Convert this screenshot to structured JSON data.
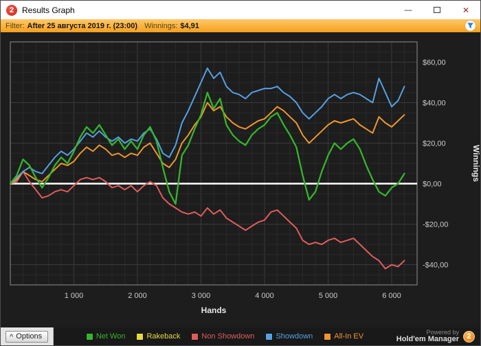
{
  "window": {
    "title": "Results Graph",
    "app_badge": "2"
  },
  "titlebar_icons": {
    "minimize": "—",
    "close": "✕"
  },
  "filter_bar": {
    "label": "Filter:",
    "value": "After 25 августа 2019 г. (23:00)",
    "winnings_label": "Winnings:",
    "winnings_value": "$4,91"
  },
  "chart_data": {
    "type": "line",
    "xlabel": "Hands",
    "ylabel": "Winnings",
    "xlim": [
      0,
      6400
    ],
    "ylim": [
      -50,
      70
    ],
    "x_step": 100,
    "x_minor_step": 200,
    "y_minor_step": 5,
    "grid": true,
    "grid_minor_color": "#292929",
    "grid_major_color": "#3a3a3a",
    "tick_color": "#cccccc",
    "axis_label_color": "#e8e8e8",
    "zero_line_color": "#ffffff",
    "plot_border_color": "#8f8f8f",
    "x_ticks": [
      {
        "value": 1000,
        "label": "1 000"
      },
      {
        "value": 2000,
        "label": "2 000"
      },
      {
        "value": 3000,
        "label": "3 000"
      },
      {
        "value": 4000,
        "label": "4 000"
      },
      {
        "value": 5000,
        "label": "5 000"
      },
      {
        "value": 6000,
        "label": "6 000"
      }
    ],
    "y_ticks": [
      {
        "value": 60,
        "label": "$60,00"
      },
      {
        "value": 40,
        "label": "$40,00"
      },
      {
        "value": 20,
        "label": "$20,00"
      },
      {
        "value": 0,
        "label": "$0,00"
      },
      {
        "value": -20,
        "label": "-$20,00"
      },
      {
        "value": -40,
        "label": "-$40,00"
      }
    ],
    "legend_position": "bottom",
    "series": [
      {
        "name": "Net Won",
        "color": "#35b52b",
        "z": 6,
        "width": 2.3,
        "values": [
          0,
          4,
          12,
          9,
          3,
          -2,
          3,
          9,
          13,
          10,
          16,
          23,
          28,
          25,
          29,
          24,
          19,
          22,
          17,
          21,
          17,
          24,
          28,
          21,
          8,
          -4,
          -10,
          14,
          19,
          27,
          34,
          45,
          37,
          42,
          29,
          24,
          21,
          19,
          24,
          27,
          29,
          33,
          35,
          29,
          24,
          18,
          4,
          -8,
          -4,
          6,
          14,
          20,
          17,
          20,
          22,
          17,
          9,
          2,
          -4,
          -6,
          -2,
          0,
          5
        ]
      },
      {
        "name": "Rakeback",
        "color": "#e6d93f",
        "z": 1,
        "width": 2,
        "values": [
          0,
          0,
          0,
          0,
          0,
          0,
          0,
          0,
          0,
          0,
          0,
          0,
          0,
          0,
          0,
          0,
          0,
          0,
          0,
          0,
          0,
          0,
          0,
          0,
          0,
          0,
          0,
          0,
          0,
          0,
          0,
          0,
          0,
          0,
          0,
          0,
          0,
          0,
          0,
          0,
          0,
          0,
          0,
          0,
          0,
          0,
          0,
          0,
          0,
          0,
          0,
          0,
          0,
          0,
          0,
          0,
          0,
          0,
          0,
          0,
          0,
          0,
          0
        ]
      },
      {
        "name": "Non Showdown",
        "color": "#e05c5c",
        "z": 3,
        "width": 2,
        "values": [
          0,
          1,
          6,
          1,
          -3,
          -7,
          -6,
          -4,
          -3,
          -4,
          -1,
          2,
          3,
          2,
          3,
          1,
          -2,
          -1,
          -3,
          -1,
          -4,
          -1,
          1,
          -1,
          -7,
          -10,
          -12,
          -14,
          -15,
          -14,
          -16,
          -12,
          -15,
          -13,
          -17,
          -19,
          -21,
          -23,
          -21,
          -19,
          -18,
          -14,
          -13,
          -16,
          -19,
          -22,
          -28,
          -30,
          -29,
          -30,
          -28,
          -27,
          -29,
          -28,
          -27,
          -30,
          -33,
          -36,
          -38,
          -42,
          -40,
          -41,
          -38
        ]
      },
      {
        "name": "Showdown",
        "color": "#55a1e4",
        "z": 5,
        "width": 2,
        "values": [
          0,
          3,
          6,
          8,
          6,
          5,
          9,
          13,
          16,
          14,
          17,
          21,
          25,
          23,
          26,
          23,
          21,
          23,
          20,
          22,
          21,
          25,
          27,
          22,
          15,
          13,
          19,
          30,
          36,
          43,
          50,
          57,
          52,
          55,
          48,
          45,
          44,
          42,
          45,
          46,
          47,
          47,
          48,
          45,
          43,
          40,
          35,
          32,
          35,
          38,
          42,
          44,
          42,
          44,
          45,
          44,
          42,
          40,
          52,
          45,
          38,
          41,
          48
        ]
      },
      {
        "name": "All-In EV",
        "color": "#ef962d",
        "z": 4,
        "width": 2,
        "values": [
          0,
          2,
          6,
          4,
          2,
          1,
          4,
          7,
          10,
          9,
          11,
          15,
          18,
          16,
          19,
          17,
          14,
          15,
          13,
          15,
          14,
          18,
          20,
          15,
          10,
          8,
          12,
          20,
          24,
          29,
          33,
          40,
          36,
          38,
          33,
          30,
          28,
          27,
          29,
          31,
          32,
          35,
          38,
          36,
          33,
          30,
          24,
          20,
          23,
          26,
          29,
          31,
          30,
          31,
          32,
          29,
          27,
          25,
          33,
          30,
          28,
          31,
          34
        ]
      }
    ]
  },
  "bottom_bar": {
    "options_label": "Options",
    "chevron": "^",
    "powered_by": "Powered by",
    "brand": "Hold'em Manager",
    "badge": "2"
  }
}
